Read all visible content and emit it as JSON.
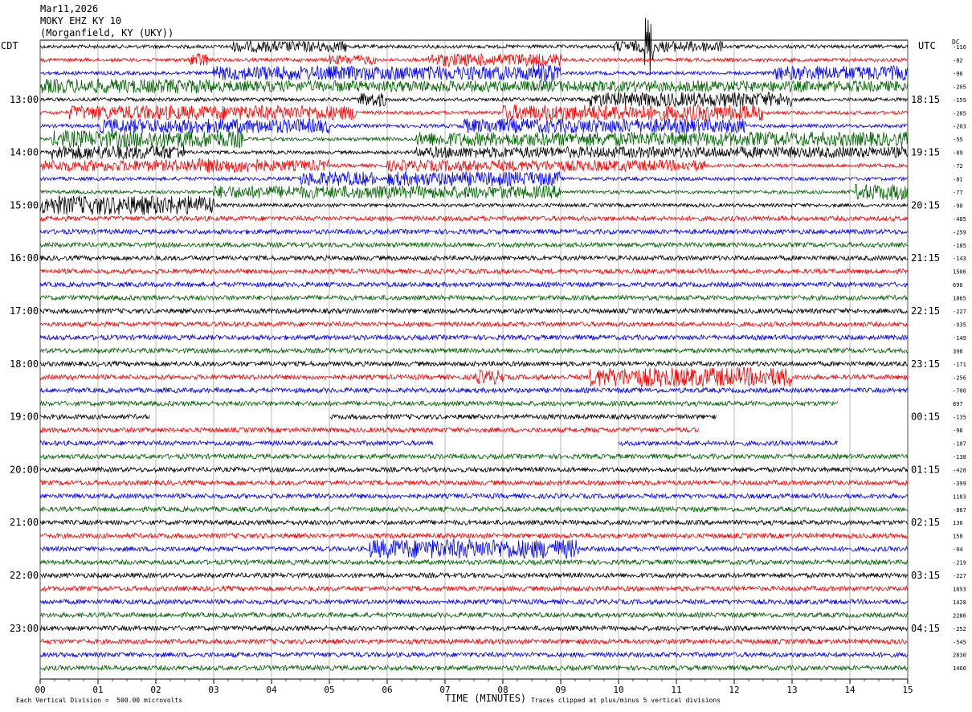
{
  "header": {
    "date": "Mar11,2026",
    "station": "MOKY EHZ KY 10",
    "location": "(Morganfield, KY (UKY))"
  },
  "axis": {
    "left_zone": "CDT",
    "right_zone": "UTC",
    "dc_label": "DC",
    "xlabel": "TIME (MINUTES)"
  },
  "footer": {
    "scale_note": "Each Vertical Division =  500.00 microvolts",
    "clip_note": "Traces clipped at plus/minus 5 vertical divisions"
  },
  "chart_data": {
    "type": "line",
    "title": "MOKY EHZ KY 10 helicorder",
    "x_ticks": [
      "00",
      "01",
      "02",
      "03",
      "04",
      "05",
      "06",
      "07",
      "08",
      "09",
      "10",
      "11",
      "12",
      "13",
      "14",
      "15"
    ],
    "xlim": [
      0,
      15
    ],
    "left_time_labels": [
      "13:00",
      "14:00",
      "15:00",
      "16:00",
      "17:00",
      "18:00",
      "19:00",
      "20:00",
      "21:00",
      "22:00",
      "23:00"
    ],
    "right_time_labels": [
      "18:15",
      "19:15",
      "20:15",
      "21:15",
      "22:15",
      "23:15",
      "00:15",
      "01:15",
      "02:15",
      "03:15",
      "04:15"
    ],
    "trace_colors": [
      "#000000",
      "#ff0000",
      "#0000ff",
      "#006400"
    ],
    "dc_offsets": [
      "-116",
      "-82",
      "-96",
      "-205",
      "-159",
      "-285",
      "-203",
      "-55",
      "-89",
      "-72",
      "-81",
      "-77",
      "-90",
      "-485",
      "-259",
      "-185",
      "-143",
      "1506",
      "696",
      "1865",
      "-227",
      "-935",
      "-149",
      "396",
      "-171",
      "-256",
      "-700",
      "897",
      "-135",
      "-98",
      "-107",
      "-138",
      "-428",
      "-399",
      "1183",
      "-867",
      "136",
      "158",
      "-94",
      "-219",
      "-227",
      "1893",
      "1428",
      "2286",
      "-252",
      "-545",
      "2830",
      "1466"
    ],
    "rows_per_hour": 4,
    "minutes_per_row": 15,
    "gaps": [
      {
        "row": 28,
        "from_min": 1.9,
        "to_min": 5.0
      },
      {
        "row": 28,
        "from_min": 11.7,
        "to_min": 15.0
      },
      {
        "row": 29,
        "from_min": 11.4,
        "to_min": 15.0
      },
      {
        "row": 30,
        "from_min": 6.8,
        "to_min": 10.0
      },
      {
        "row": 30,
        "from_min": 13.8,
        "to_min": 15.0
      },
      {
        "row": 27,
        "from_min": 13.8,
        "to_min": 15.0
      }
    ]
  }
}
